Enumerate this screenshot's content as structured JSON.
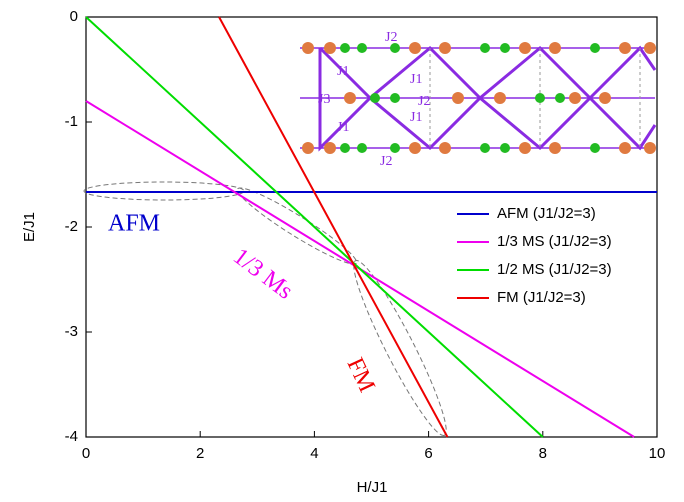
{
  "chart_data": {
    "type": "line",
    "x_label": "H/J1",
    "y_label": "E/J1",
    "xlim": [
      0,
      10
    ],
    "ylim": [
      -4,
      0
    ],
    "xticks": [
      0,
      2,
      4,
      6,
      8,
      10
    ],
    "yticks": [
      0,
      -1,
      -2,
      -3,
      -4
    ],
    "series": [
      {
        "name": "AFM (J1/J2=3)",
        "color": "#0000cc",
        "x": [
          0,
          10
        ],
        "values": [
          -1.667,
          -1.667
        ]
      },
      {
        "name": "1/3 MS (J1/J2=3)",
        "color": "#ee00ee",
        "x": [
          0,
          9.6
        ],
        "values": [
          -0.8,
          -4
        ]
      },
      {
        "name": "1/2 MS (J1/J2=3)",
        "color": "#00dd00",
        "x": [
          0,
          8
        ],
        "values": [
          0,
          -4
        ]
      },
      {
        "name": "FM   (J1/J2=3)",
        "color": "#ee0000",
        "x": [
          2.33,
          6.33
        ],
        "values": [
          0,
          -4
        ]
      }
    ],
    "annotations": [
      "AFM",
      "1/3 Ms",
      "FM"
    ],
    "inset_labels": [
      "J2",
      "J1",
      "J1",
      "J3",
      "J2",
      "J1",
      "J1",
      "J2"
    ]
  }
}
